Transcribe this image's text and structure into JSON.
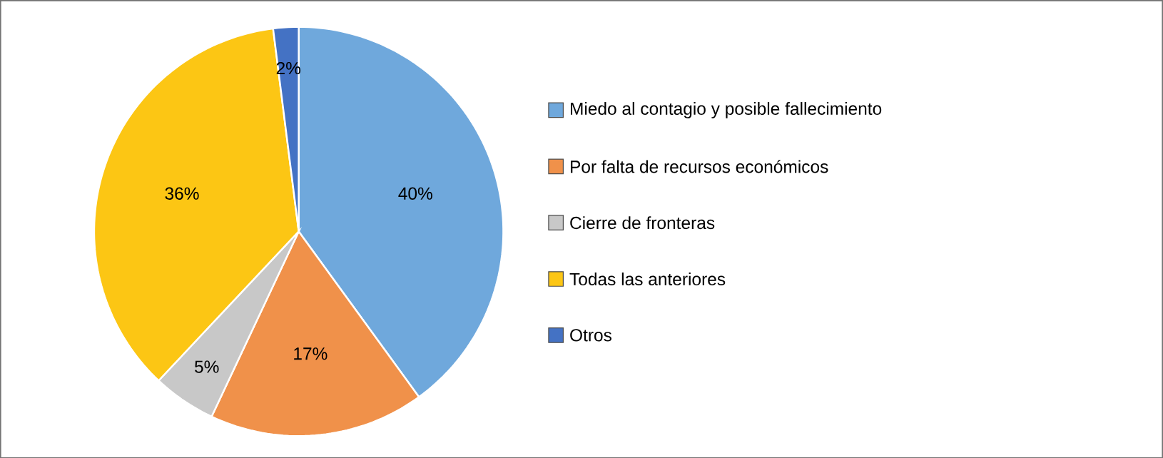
{
  "chart_data": {
    "type": "pie",
    "categories": [
      "Miedo al contagio y posible fallecimiento",
      "Por falta de recursos económicos",
      "Cierre de fronteras",
      "Todas las anteriores",
      "Otros"
    ],
    "values": [
      40,
      17,
      5,
      36,
      2
    ],
    "value_labels": [
      "40%",
      "17%",
      "5%",
      "36%",
      "2%"
    ],
    "colors": [
      "#6fa8dc",
      "#f0914a",
      "#c8c8c8",
      "#fcc614",
      "#4472c4"
    ],
    "legend": "right"
  }
}
